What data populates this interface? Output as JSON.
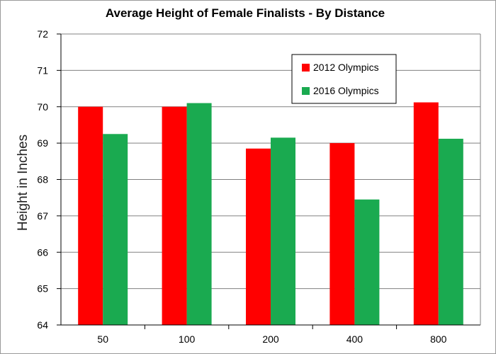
{
  "chart_data": {
    "type": "bar",
    "title": "Average Height of Female Finalists - By Distance",
    "xlabel": "",
    "ylabel": "Height in Inches",
    "categories": [
      "50",
      "100",
      "200",
      "400",
      "800"
    ],
    "series": [
      {
        "name": "2012 Olympics",
        "color": "#ff0000",
        "values": [
          70.0,
          70.0,
          68.85,
          69.0,
          70.12
        ]
      },
      {
        "name": "2016 Olympics",
        "color": "#1aaa50",
        "values": [
          69.25,
          70.1,
          69.15,
          67.45,
          69.12
        ]
      }
    ],
    "ylim": [
      64,
      72
    ],
    "yticks": [
      64,
      65,
      66,
      67,
      68,
      69,
      70,
      71,
      72
    ],
    "grid": true,
    "legend_position": "top-right",
    "plot_background": "#ffffff",
    "grid_color": "#808080"
  }
}
